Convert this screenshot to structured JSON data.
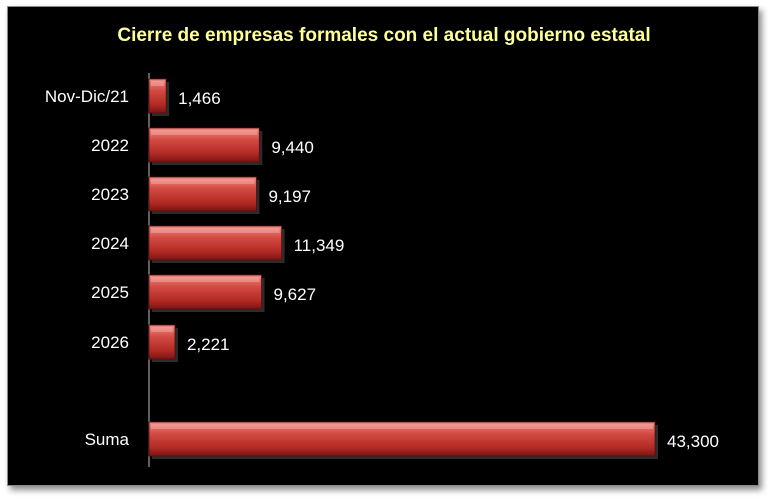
{
  "chart_data": {
    "type": "bar",
    "orientation": "horizontal",
    "title": "Cierre de empresas formales con el actual gobierno estatal",
    "categories": [
      "Nov-Dic/21",
      "2022",
      "2023",
      "2024",
      "2025",
      "2026",
      "Suma"
    ],
    "values": [
      1466,
      9440,
      9197,
      11349,
      9627,
      2221,
      43300
    ],
    "value_labels": [
      "1,466",
      "9,440",
      "9,197",
      "11,349",
      "9,627",
      "2,221",
      "43,300"
    ],
    "xlabel": "",
    "ylabel": "",
    "xlim": [
      0,
      43300
    ],
    "grid": false,
    "legend": "none",
    "colors": {
      "background": "#000000",
      "bar": "#c0392b",
      "bar_light": "#e8706a",
      "bar_dark": "#7a1414",
      "title": "#ffff99",
      "text": "#ffffff",
      "axis": "#bfbfbf"
    }
  }
}
